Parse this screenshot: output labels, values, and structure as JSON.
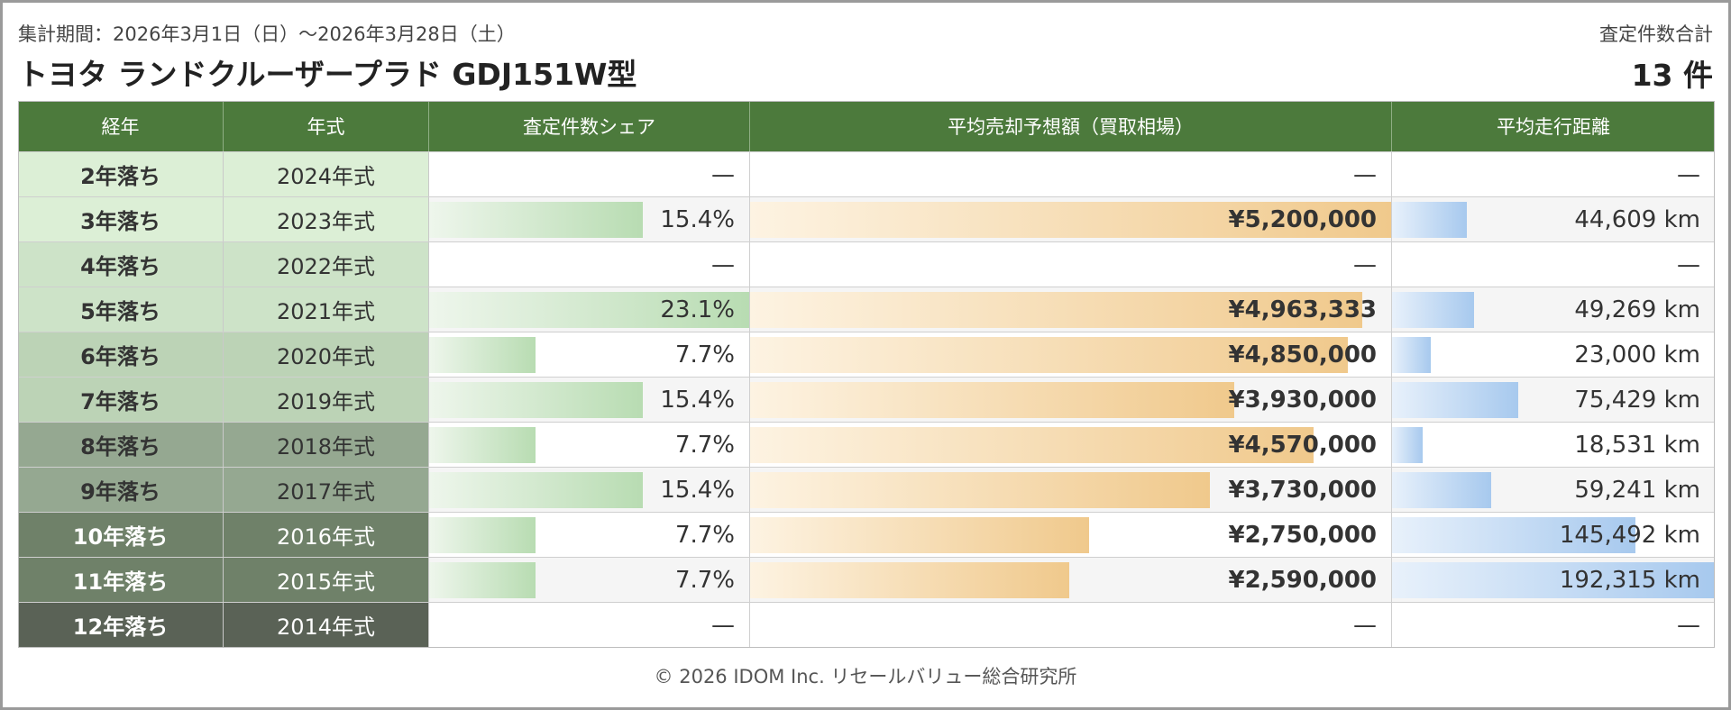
{
  "header": {
    "period": "集計期間：2026年3月1日（日）～2026年3月28日（土）",
    "title": "トヨタ ランドクルーザープラド GDJ151W型",
    "total_label": "査定件数合計",
    "total_value": "13 件"
  },
  "colors": {
    "header_bg": "#4c7a3c",
    "share_bar": "#b8dcb2",
    "price_bar": "#f0c98c",
    "distance_bar": "#a7c9ee"
  },
  "chart_data": {
    "type": "table",
    "columns": [
      "経年",
      "年式",
      "査定件数シェア",
      "平均売却予想額（買取相場）",
      "平均走行距離"
    ],
    "rows": [
      {
        "age": "2年落ち",
        "year": "2024年式",
        "share": null,
        "share_label": "—",
        "price": null,
        "price_label": "—",
        "distance": null,
        "distance_label": "—"
      },
      {
        "age": "3年落ち",
        "year": "2023年式",
        "share": 15.4,
        "share_label": "15.4%",
        "price": 5200000,
        "price_label": "¥5,200,000",
        "distance": 44609,
        "distance_label": "44,609 km"
      },
      {
        "age": "4年落ち",
        "year": "2022年式",
        "share": null,
        "share_label": "—",
        "price": null,
        "price_label": "—",
        "distance": null,
        "distance_label": "—"
      },
      {
        "age": "5年落ち",
        "year": "2021年式",
        "share": 23.1,
        "share_label": "23.1%",
        "price": 4963333,
        "price_label": "¥4,963,333",
        "distance": 49269,
        "distance_label": "49,269 km"
      },
      {
        "age": "6年落ち",
        "year": "2020年式",
        "share": 7.7,
        "share_label": "7.7%",
        "price": 4850000,
        "price_label": "¥4,850,000",
        "distance": 23000,
        "distance_label": "23,000 km"
      },
      {
        "age": "7年落ち",
        "year": "2019年式",
        "share": 15.4,
        "share_label": "15.4%",
        "price": 3930000,
        "price_label": "¥3,930,000",
        "distance": 75429,
        "distance_label": "75,429 km"
      },
      {
        "age": "8年落ち",
        "year": "2018年式",
        "share": 7.7,
        "share_label": "7.7%",
        "price": 4570000,
        "price_label": "¥4,570,000",
        "distance": 18531,
        "distance_label": "18,531 km"
      },
      {
        "age": "9年落ち",
        "year": "2017年式",
        "share": 15.4,
        "share_label": "15.4%",
        "price": 3730000,
        "price_label": "¥3,730,000",
        "distance": 59241,
        "distance_label": "59,241 km"
      },
      {
        "age": "10年落ち",
        "year": "2016年式",
        "share": 7.7,
        "share_label": "7.7%",
        "price": 2750000,
        "price_label": "¥2,750,000",
        "distance": 145492,
        "distance_label": "145,492 km"
      },
      {
        "age": "11年落ち",
        "year": "2015年式",
        "share": 7.7,
        "share_label": "7.7%",
        "price": 2590000,
        "price_label": "¥2,590,000",
        "distance": 192315,
        "distance_label": "192,315 km"
      },
      {
        "age": "12年落ち",
        "year": "2014年式",
        "share": null,
        "share_label": "—",
        "price": null,
        "price_label": "—",
        "distance": null,
        "distance_label": "—"
      }
    ]
  },
  "footer": {
    "copyright": "© 2026 IDOM Inc. リセールバリュー総合研究所"
  }
}
